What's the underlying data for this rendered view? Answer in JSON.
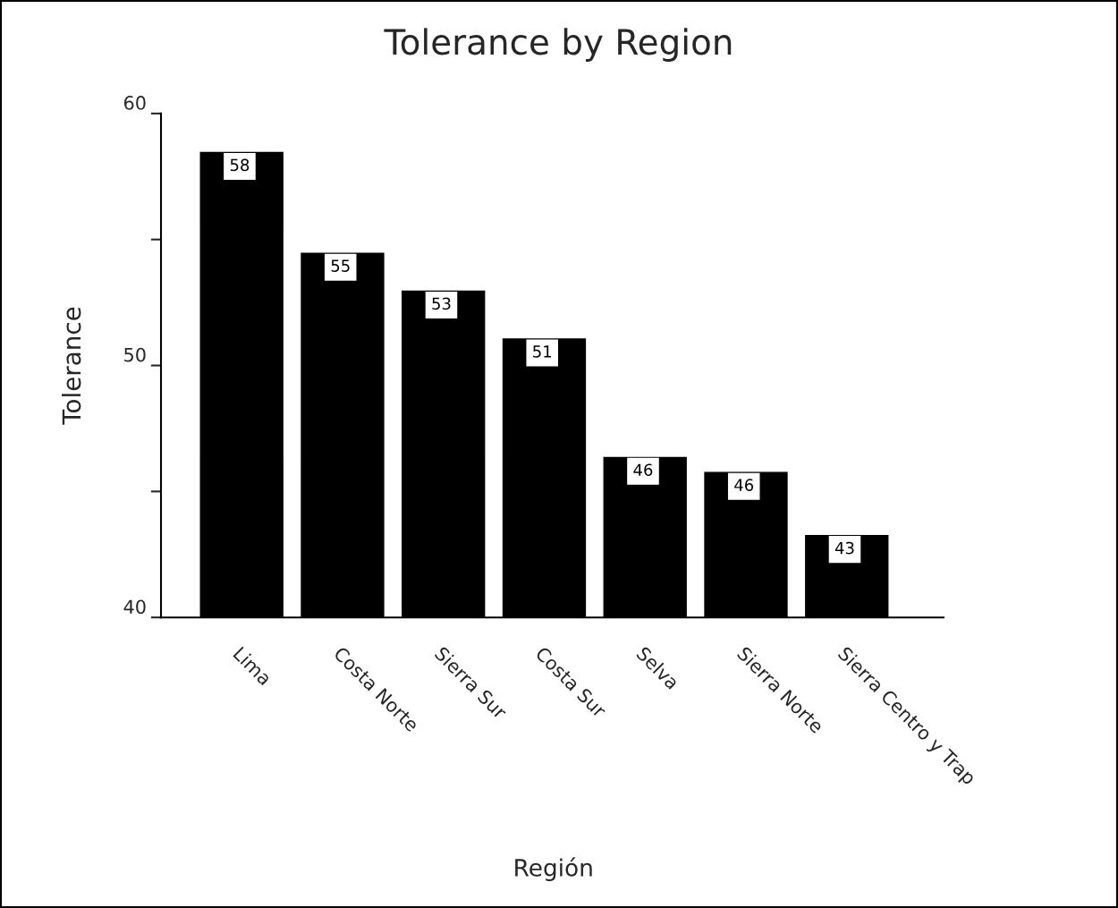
{
  "chart_data": {
    "type": "bar",
    "title": "Tolerance by Region",
    "xlabel": "Región",
    "ylabel": "Tolerance",
    "categories": [
      "Lima",
      "Costa Norte",
      "Sierra Sur",
      "Costa Sur",
      "Selva",
      "Sierra Norte",
      "Sierra Centro y Trap"
    ],
    "values": [
      58.5,
      54.5,
      53.0,
      51.1,
      46.4,
      45.8,
      43.3
    ],
    "value_labels": [
      "58",
      "55",
      "53",
      "51",
      "46",
      "46",
      "43"
    ],
    "color": "#000000",
    "ylim": [
      40,
      60
    ],
    "yticks": [
      40,
      {
        "value": 45,
        "label": null
      },
      50,
      {
        "value": 55,
        "label": null
      },
      60
    ],
    "grid": false
  }
}
